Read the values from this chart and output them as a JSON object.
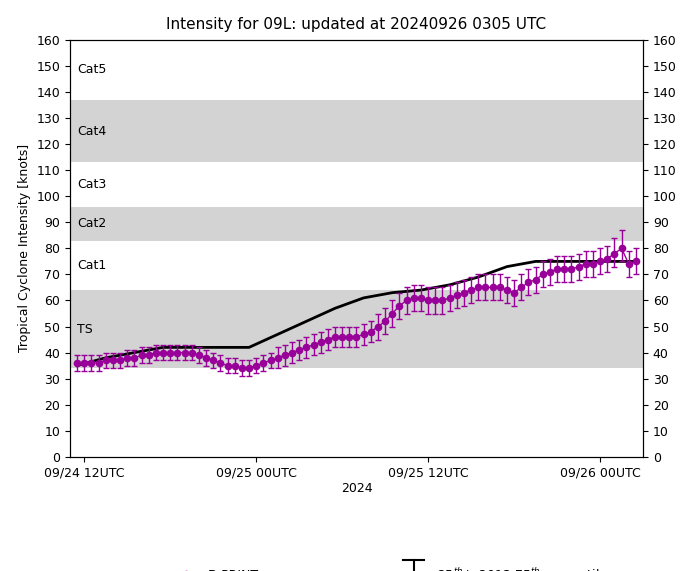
{
  "title": "Intensity for 09L: updated at 20240926 0305 UTC",
  "xlabel": "2024",
  "ylabel": "Tropical Cyclone Intensity [knots]",
  "ylim": [
    0,
    160
  ],
  "yticks": [
    0,
    10,
    20,
    30,
    40,
    50,
    60,
    70,
    80,
    90,
    100,
    110,
    120,
    130,
    140,
    150,
    160
  ],
  "category_bands": [
    {
      "name": "TS",
      "ymin": 34,
      "ymax": 64,
      "color": "#d3d3d3"
    },
    {
      "name": "Cat1",
      "ymin": 64,
      "ymax": 83,
      "color": "#ffffff"
    },
    {
      "name": "Cat2",
      "ymin": 83,
      "ymax": 96,
      "color": "#d3d3d3"
    },
    {
      "name": "Cat3",
      "ymin": 96,
      "ymax": 113,
      "color": "#ffffff"
    },
    {
      "name": "Cat4",
      "ymin": 113,
      "ymax": 137,
      "color": "#d3d3d3"
    },
    {
      "name": "Cat5",
      "ymin": 137,
      "ymax": 160,
      "color": "#ffffff"
    }
  ],
  "xtick_labels": [
    "09/24 12UTC",
    "09/25 00UTC",
    "09/25 12UTC",
    "09/26 00UTC"
  ],
  "xtick_positions": [
    0.5,
    12.5,
    24.5,
    36.5
  ],
  "dprint_times": [
    0.0,
    0.5,
    1.0,
    1.5,
    2.0,
    2.5,
    3.0,
    3.5,
    4.0,
    4.5,
    5.0,
    5.5,
    6.0,
    6.5,
    7.0,
    7.5,
    8.0,
    8.5,
    9.0,
    9.5,
    10.0,
    10.5,
    11.0,
    11.5,
    12.0,
    12.5,
    13.0,
    13.5,
    14.0,
    14.5,
    15.0,
    15.5,
    16.0,
    16.5,
    17.0,
    17.5,
    18.0,
    18.5,
    19.0,
    19.5,
    20.0,
    20.5,
    21.0,
    21.5,
    22.0,
    22.5,
    23.0,
    23.5,
    24.0,
    24.5,
    25.0,
    25.5,
    26.0,
    26.5,
    27.0,
    27.5,
    28.0,
    28.5,
    29.0,
    29.5,
    30.0,
    30.5,
    31.0,
    31.5,
    32.0,
    32.5,
    33.0,
    33.5,
    34.0,
    34.5,
    35.0,
    35.5,
    36.0,
    36.5,
    37.0,
    37.5,
    38.0,
    38.5,
    39.0
  ],
  "dprint_values": [
    36,
    36,
    36,
    36,
    37,
    37,
    37,
    38,
    38,
    39,
    39,
    40,
    40,
    40,
    40,
    40,
    40,
    39,
    38,
    37,
    36,
    35,
    35,
    34,
    34,
    35,
    36,
    37,
    38,
    39,
    40,
    41,
    42,
    43,
    44,
    45,
    46,
    46,
    46,
    46,
    47,
    48,
    50,
    52,
    55,
    58,
    60,
    61,
    61,
    60,
    60,
    60,
    61,
    62,
    63,
    64,
    65,
    65,
    65,
    65,
    64,
    63,
    65,
    67,
    68,
    70,
    71,
    72,
    72,
    72,
    73,
    74,
    74,
    75,
    76,
    78,
    80,
    74,
    75
  ],
  "dprint_lower": [
    3,
    3,
    3,
    3,
    3,
    3,
    3,
    3,
    3,
    3,
    3,
    3,
    3,
    3,
    3,
    3,
    3,
    3,
    3,
    3,
    3,
    3,
    3,
    3,
    3,
    3,
    3,
    3,
    4,
    4,
    4,
    4,
    4,
    4,
    4,
    4,
    4,
    4,
    4,
    4,
    4,
    4,
    5,
    5,
    5,
    5,
    5,
    5,
    5,
    5,
    5,
    5,
    5,
    5,
    5,
    5,
    5,
    5,
    5,
    5,
    5,
    5,
    5,
    5,
    5,
    5,
    5,
    5,
    5,
    5,
    5,
    5,
    5,
    5,
    5,
    5,
    5,
    5,
    5
  ],
  "dprint_upper": [
    3,
    3,
    3,
    3,
    3,
    3,
    3,
    3,
    3,
    3,
    3,
    3,
    3,
    3,
    3,
    3,
    3,
    3,
    3,
    3,
    3,
    3,
    3,
    3,
    3,
    3,
    3,
    3,
    4,
    4,
    4,
    4,
    4,
    4,
    4,
    4,
    4,
    4,
    4,
    4,
    4,
    4,
    5,
    5,
    5,
    5,
    5,
    5,
    5,
    5,
    5,
    5,
    5,
    5,
    5,
    5,
    5,
    5,
    5,
    5,
    5,
    5,
    5,
    5,
    5,
    5,
    5,
    5,
    5,
    5,
    5,
    5,
    5,
    5,
    5,
    6,
    7,
    5,
    5
  ],
  "besttrack_times": [
    0.0,
    2.0,
    4.0,
    6.0,
    8.0,
    10.0,
    12.0,
    14.0,
    16.0,
    18.0,
    20.0,
    22.0,
    24.0,
    26.0,
    28.0,
    30.0,
    32.0,
    34.0,
    36.0,
    38.0,
    39.0
  ],
  "besttrack_values": [
    35,
    38,
    40,
    42,
    42,
    42,
    42,
    47,
    52,
    57,
    61,
    63,
    64,
    66,
    69,
    73,
    75,
    75,
    75,
    75,
    75
  ],
  "dprint_color": "#990099",
  "besttrack_color": "#000000",
  "background_color": "#ffffff"
}
